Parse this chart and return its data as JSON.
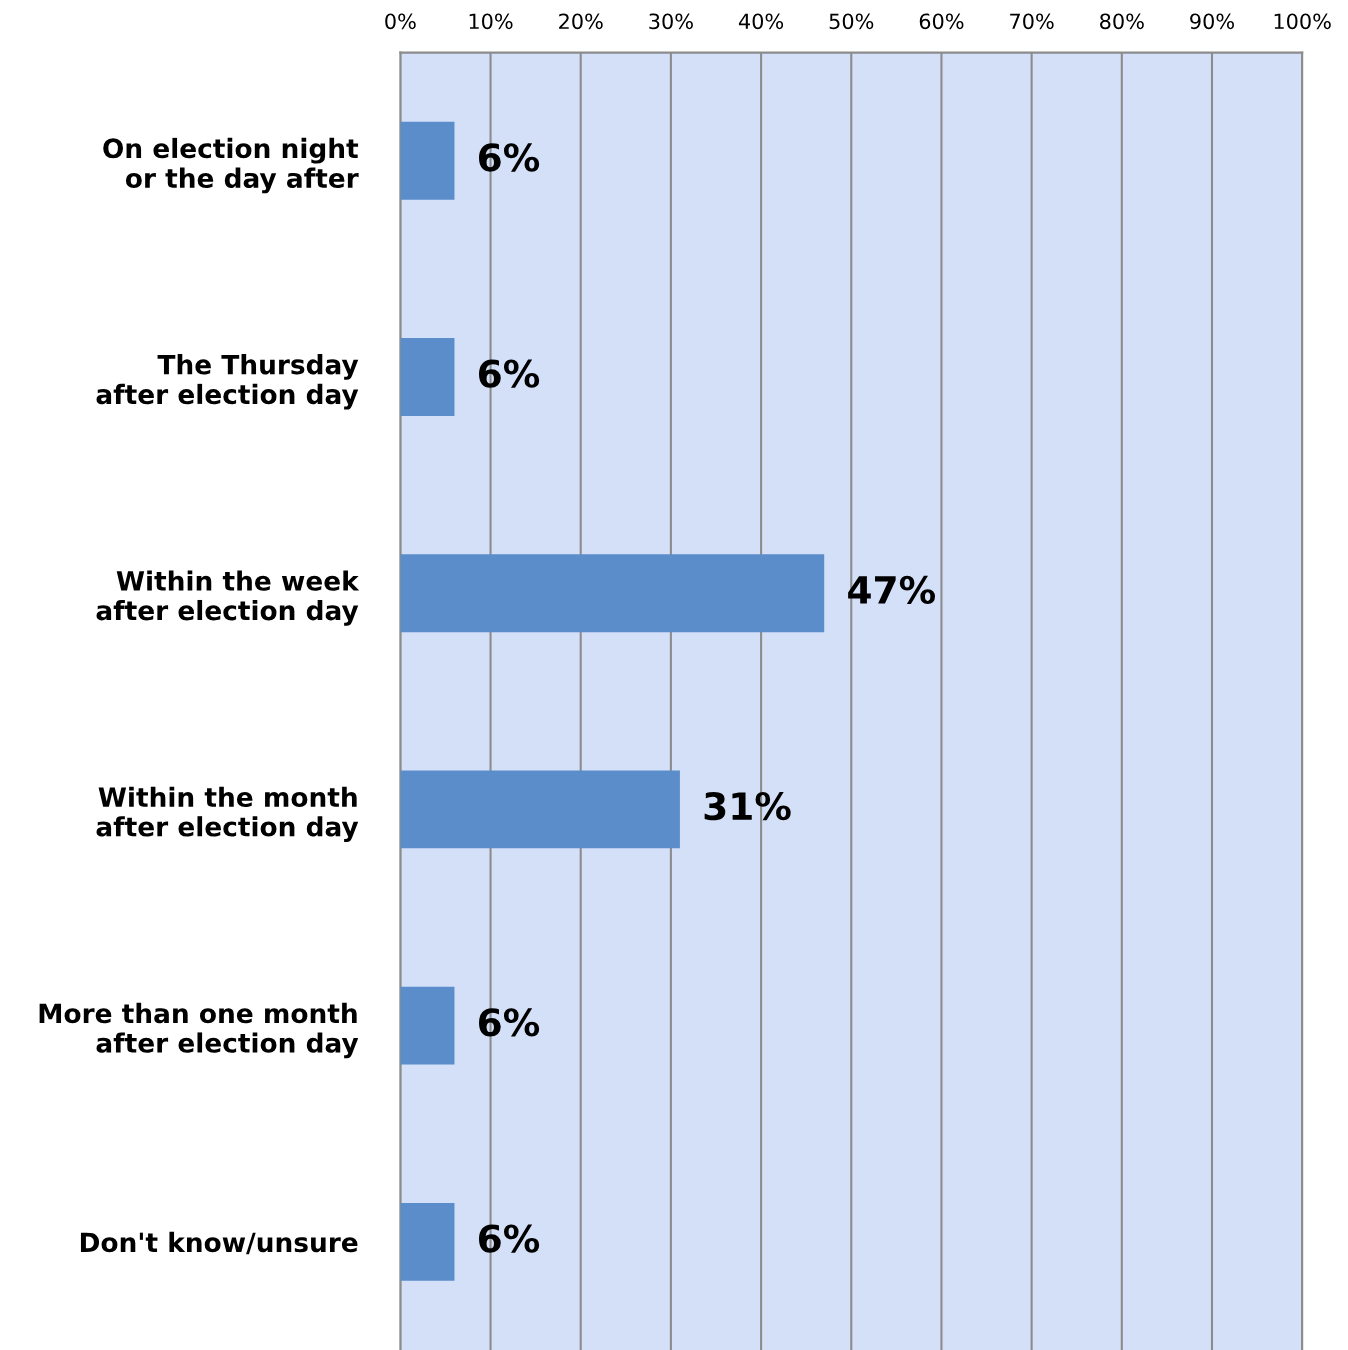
{
  "chart_data": {
    "type": "bar",
    "orientation": "horizontal",
    "categories": [
      "On election night\nor the day after",
      "The Thursday\nafter election day",
      "Within the week\nafter election day",
      "Within the month\nafter election day",
      "More than one month\nafter election day",
      "Don't know/unsure"
    ],
    "values": [
      6,
      6,
      47,
      31,
      6,
      6
    ],
    "color": "#5b8dcb",
    "value_labels": [
      "6%",
      "6%",
      "47%",
      "31%",
      "6%",
      "6%"
    ],
    "xlim": [
      0,
      100
    ],
    "xticks": [
      {
        "value": 0,
        "label": "0%"
      },
      {
        "value": 10,
        "label": "10%"
      },
      {
        "value": 20,
        "label": "20%"
      },
      {
        "value": 30,
        "label": "30%"
      },
      {
        "value": 40,
        "label": "40%"
      },
      {
        "value": 50,
        "label": "50%"
      },
      {
        "value": 60,
        "label": "60%"
      },
      {
        "value": 70,
        "label": "70%"
      },
      {
        "value": 80,
        "label": "80%"
      },
      {
        "value": 90,
        "label": "90%"
      },
      {
        "value": 100,
        "label": "100%"
      }
    ],
    "grid": "x",
    "legend": false
  }
}
